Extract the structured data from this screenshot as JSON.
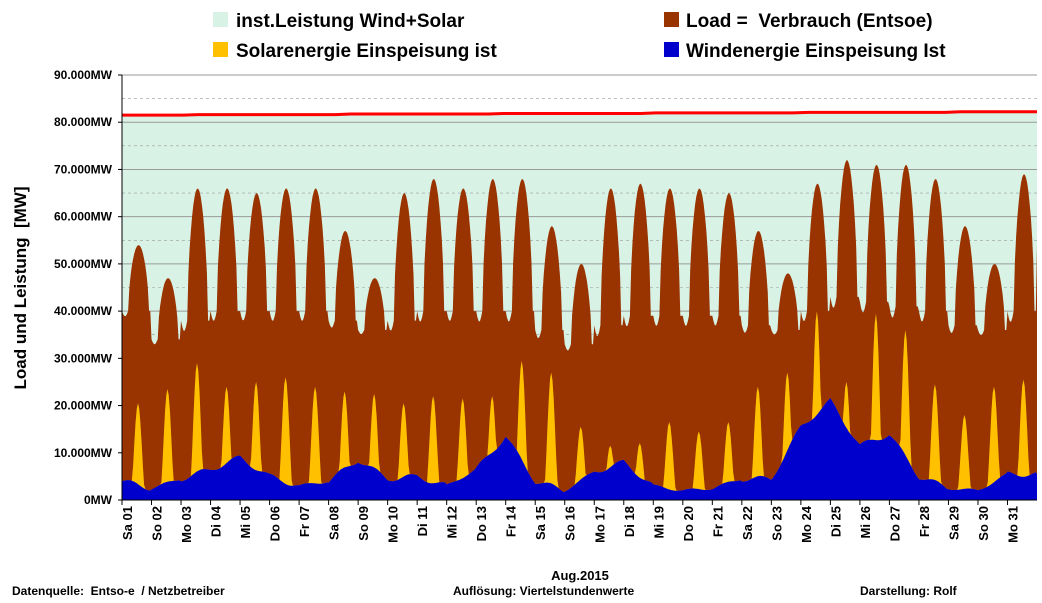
{
  "colors": {
    "capacity": "#d8f3e6",
    "load": "#993300",
    "solar": "#ffc000",
    "wind": "#0000cc",
    "capacity_line": "#ff0000",
    "grid": "#9a9a9a"
  },
  "chart_data": {
    "type": "area",
    "ylabel": "Load und Leistung  [MW]",
    "xlabel": "Aug.2015",
    "ylim": [
      0,
      90000
    ],
    "ytick_values": [
      0,
      10000,
      20000,
      30000,
      40000,
      50000,
      60000,
      70000,
      80000,
      90000
    ],
    "ytick_labels": [
      "0MW",
      "10.000MW",
      "20.000MW",
      "30.000MW",
      "40.000MW",
      "50.000MW",
      "60.000MW",
      "70.000MW",
      "80.000MW",
      "90.000MW"
    ],
    "days": [
      "Sa 01",
      "So 02",
      "Mo 03",
      "Di 04",
      "Mi 05",
      "Do 06",
      "Fr 07",
      "Sa 08",
      "So 09",
      "Mo 10",
      "Di 11",
      "Mi 12",
      "Do 13",
      "Fr 14",
      "Sa 15",
      "So 16",
      "Mo 17",
      "Di 18",
      "Mi 19",
      "Do 20",
      "Fr 21",
      "Sa 22",
      "So 23",
      "Mo 24",
      "Di 25",
      "Mi 26",
      "Do 27",
      "Fr 28",
      "Sa 29",
      "So 30",
      "Mo 31"
    ],
    "series": [
      {
        "name": "inst.Leistung Wind+Solar",
        "kind": "area",
        "values_start": 81500,
        "values_end": 82200,
        "unit": "MW"
      },
      {
        "name": "Load =  Verbrauch (Entsoe)",
        "kind": "area",
        "daily_peak": [
          54000,
          47000,
          66000,
          66000,
          65000,
          66000,
          66000,
          57000,
          47000,
          65000,
          68000,
          66000,
          68000,
          68000,
          58000,
          50000,
          66000,
          67000,
          66000,
          66000,
          65000,
          57000,
          48000,
          67000,
          72000,
          71000,
          71000,
          68000,
          58000,
          50000,
          69000
        ],
        "daily_trough": [
          40000,
          34000,
          38000,
          40000,
          40000,
          40000,
          40000,
          38000,
          36000,
          38000,
          40000,
          40000,
          40000,
          40000,
          36000,
          33000,
          37000,
          39000,
          39000,
          39000,
          39000,
          37000,
          36000,
          40000,
          43000,
          42000,
          41000,
          40000,
          37000,
          36000,
          40000
        ],
        "unit": "MW"
      },
      {
        "name": "Solarenergie Einspeisung ist",
        "kind": "area",
        "daily_peak": [
          20500,
          23500,
          29000,
          24000,
          25000,
          26000,
          24000,
          23000,
          22500,
          20500,
          22000,
          21500,
          22000,
          29500,
          27000,
          15500,
          11500,
          12000,
          16500,
          14500,
          16500,
          24000,
          27000,
          40000,
          25000,
          39500,
          36000,
          24500,
          18000,
          24000,
          25500
        ],
        "unit": "MW"
      },
      {
        "name": "Windenergie Einspeisung Ist",
        "kind": "area",
        "daily_level": [
          4000,
          2500,
          4500,
          6500,
          9000,
          5000,
          3000,
          4000,
          8500,
          4500,
          5000,
          3000,
          6500,
          13500,
          4000,
          2000,
          6000,
          8000,
          3000,
          2000,
          2500,
          4500,
          4500,
          15500,
          21000,
          11500,
          14000,
          5000,
          2500,
          2000,
          5500
        ],
        "unit": "MW"
      }
    ]
  },
  "footer": {
    "source": "Datenquelle:  Entso-e  / Netzbetreiber",
    "resolution": "Auflösung: Viertelstundenwerte",
    "author": "Darstellung: Rolf"
  }
}
